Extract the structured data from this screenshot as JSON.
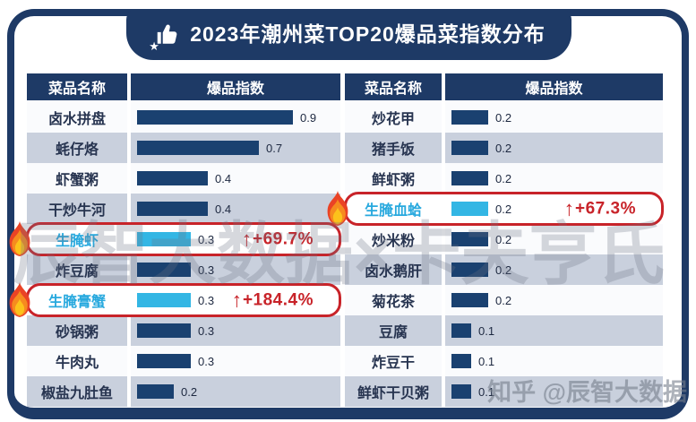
{
  "title": {
    "text": "2023年潮州菜TOP20爆品菜指数分布",
    "icon": "thumbs-up-star-icon"
  },
  "table": {
    "name_header": "菜品名称",
    "index_header": "爆品指数"
  },
  "watermarks": {
    "center": "辰智大数据×卡夫亨氏",
    "corner": "知乎 @辰智大数据"
  },
  "colors": {
    "navy": "#1e3a66",
    "bar_navy": "#1a4170",
    "bar_cyan": "#33b6e4",
    "highlight_text": "#28a9de",
    "accent_red": "#c82329",
    "row_alt": "#c9d0dd"
  },
  "chart_data": {
    "type": "bar",
    "title": "2023年潮州菜TOP20爆品菜指数分布",
    "xlabel": "",
    "ylabel": "爆品指数",
    "xlim": [
      0,
      1
    ],
    "column_headers": [
      "菜品名称",
      "爆品指数"
    ],
    "left": {
      "categories": [
        "卤水拼盘",
        "蚝仔烙",
        "虾蟹粥",
        "干炒牛河",
        "生腌虾",
        "炸豆腐",
        "生腌膏蟹",
        "砂锅粥",
        "牛肉丸",
        "椒盐九肚鱼"
      ],
      "values": [
        0.9,
        0.7,
        0.4,
        0.4,
        0.3,
        0.3,
        0.3,
        0.3,
        0.3,
        0.2
      ],
      "highlights": [
        {
          "index": 4,
          "name": "生腌虾",
          "change": "+69.7%"
        },
        {
          "index": 6,
          "name": "生腌膏蟹",
          "change": "+184.4%"
        }
      ]
    },
    "right": {
      "categories": [
        "炒花甲",
        "猪手饭",
        "鲜虾粥",
        "生腌血蛤",
        "炒米粉",
        "卤水鹅肝",
        "菊花茶",
        "豆腐",
        "炸豆干",
        "鲜虾干贝粥"
      ],
      "values": [
        0.2,
        0.2,
        0.2,
        0.2,
        0.2,
        0.2,
        0.2,
        0.1,
        0.1,
        0.1
      ],
      "highlights": [
        {
          "index": 3,
          "name": "生腌血蛤",
          "change": "+67.3%"
        }
      ]
    }
  }
}
